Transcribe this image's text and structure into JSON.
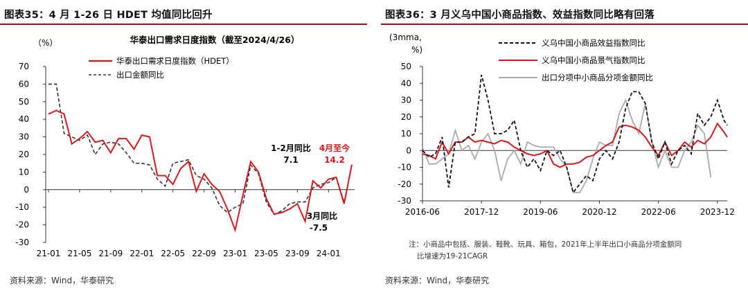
{
  "left": {
    "title": "图表35：4 月 1-26 日 HDET 均值同比回升",
    "source": "资料来源：Wind，华泰研究",
    "colors": {
      "hdet": "#d7191c",
      "export": "#333333",
      "rule": "#8b1a1a"
    }
  },
  "right": {
    "title": "图表36：3 月义乌中国小商品指数、效益指数同比略有回落",
    "note_line1": "注：小商品中包括、服装、鞋靴、玩具、箱包，2021年上半年出口小商品分项金额同",
    "note_line2": "比增速为19-21CAGR",
    "source": "资料来源：Wind，华泰研究",
    "colors": {
      "benefit": "#111111",
      "climate": "#d7191c",
      "export_small": "#aaaaaa"
    }
  },
  "chart_data": [
    {
      "type": "line",
      "title": "华泰出口需求日度指数（截至2024/4/26）",
      "ylabel": "（%）",
      "ylim": [
        -30,
        70
      ],
      "yticks": [
        "70",
        "60",
        "50",
        "40",
        "30",
        "20",
        "10",
        "0",
        "-10",
        "-20",
        "-30"
      ],
      "xtick_labels": [
        "21-01",
        "21-05",
        "21-09",
        "22-01",
        "22-05",
        "22-09",
        "23-01",
        "23-05",
        "23-09",
        "24-01"
      ],
      "x": [
        "21-01",
        "21-02",
        "21-03",
        "21-04",
        "21-05",
        "21-06",
        "21-07",
        "21-08",
        "21-09",
        "21-10",
        "21-11",
        "21-12",
        "22-01",
        "22-02",
        "22-03",
        "22-04",
        "22-05",
        "22-06",
        "22-07",
        "22-08",
        "22-09",
        "22-10",
        "22-11",
        "22-12",
        "23-01",
        "23-02",
        "23-03",
        "23-04",
        "23-05",
        "23-06",
        "23-07",
        "23-08",
        "23-09",
        "23-10",
        "23-11",
        "23-12",
        "24-01",
        "24-02",
        "24-03",
        "24-04"
      ],
      "series": [
        {
          "name": "华泰出口需求日度指数（HDET）",
          "values": [
            43,
            45,
            43,
            26,
            29,
            33,
            27,
            28,
            21,
            29,
            29,
            23,
            31,
            30,
            8,
            8,
            3,
            12,
            16,
            -1,
            9,
            3,
            -1,
            -11,
            -23,
            -3,
            16,
            10,
            -5,
            -14,
            -13,
            -11,
            -8,
            -18,
            5,
            1,
            6,
            7,
            -8,
            14.2
          ]
        },
        {
          "name": "出口金额同比",
          "values": [
            60,
            60,
            32,
            30,
            28,
            31,
            20,
            26,
            27,
            26,
            21,
            15,
            15,
            14,
            6,
            2,
            15,
            16,
            17,
            8,
            6,
            1,
            -9,
            -13,
            -10,
            -8,
            14,
            9,
            -7,
            -14,
            -12,
            -8,
            -7,
            -7,
            1,
            3,
            4,
            7,
            -7,
            null
          ]
        }
      ],
      "legend_position": "top-left",
      "annotations": [
        {
          "text": "1-2月同比",
          "value": "7.1"
        },
        {
          "text": "4月至今",
          "value": "14.2"
        },
        {
          "text": "3月同比",
          "value": "-7.5"
        }
      ]
    },
    {
      "type": "line",
      "ylabel_line1": "(3mma,",
      "ylabel_line2": "%)",
      "ylim": [
        -30,
        50
      ],
      "yticks": [
        "50",
        "40",
        "30",
        "20",
        "10",
        "0",
        "-10",
        "-20",
        "-30"
      ],
      "xtick_labels": [
        "2016-06",
        "2017-12",
        "2019-06",
        "2020-12",
        "2022-06",
        "2023-12"
      ],
      "xrange": [
        "2016-06",
        "2024-03"
      ],
      "x": [
        "2016-06",
        "2016-08",
        "2016-10",
        "2016-12",
        "2017-02",
        "2017-04",
        "2017-06",
        "2017-08",
        "2017-10",
        "2017-12",
        "2018-02",
        "2018-04",
        "2018-06",
        "2018-08",
        "2018-10",
        "2018-12",
        "2019-02",
        "2019-04",
        "2019-06",
        "2019-08",
        "2019-10",
        "2019-12",
        "2020-02",
        "2020-04",
        "2020-06",
        "2020-08",
        "2020-10",
        "2020-12",
        "2021-02",
        "2021-04",
        "2021-06",
        "2021-08",
        "2021-10",
        "2021-12",
        "2022-02",
        "2022-04",
        "2022-06",
        "2022-08",
        "2022-10",
        "2022-12",
        "2023-02",
        "2023-04",
        "2023-06",
        "2023-08",
        "2023-10",
        "2023-12",
        "2024-02",
        "2024-03"
      ],
      "series": [
        {
          "name": "义乌中国小商品效益指数同比",
          "values": [
            0,
            -4,
            -2,
            8,
            -22,
            5,
            5,
            8,
            10,
            45,
            30,
            10,
            10,
            12,
            18,
            0,
            -10,
            -5,
            -12,
            0,
            -3,
            0,
            -10,
            -25,
            -20,
            -15,
            -18,
            -5,
            0,
            -5,
            5,
            25,
            35,
            35,
            28,
            5,
            -5,
            5,
            -8,
            0,
            3,
            -2,
            22,
            15,
            20,
            30,
            18,
            15
          ]
        },
        {
          "name": "义乌中国小商品景气指数同比",
          "values": [
            -2,
            -3,
            -5,
            5,
            -2,
            5,
            5,
            8,
            5,
            6,
            5,
            4,
            6,
            5,
            2,
            0,
            -2,
            -3,
            -2,
            0,
            -8,
            -10,
            -8,
            -8,
            -7,
            -4,
            -3,
            0,
            3,
            5,
            14,
            15,
            14,
            12,
            8,
            2,
            -3,
            5,
            -3,
            0,
            5,
            2,
            6,
            4,
            8,
            16,
            11,
            8
          ]
        },
        {
          "name": "出口分项中小商品分项金额同比",
          "values": [
            2,
            -8,
            -8,
            -5,
            -2,
            12,
            0,
            3,
            -5,
            5,
            10,
            0,
            -18,
            -5,
            0,
            -8,
            5,
            3,
            2,
            2,
            2,
            -5,
            -10,
            -25,
            -25,
            -18,
            -5,
            5,
            3,
            3,
            22,
            30,
            18,
            10,
            28,
            5,
            -10,
            0,
            -10,
            -10,
            0,
            5,
            15,
            10,
            -16,
            null,
            null,
            null
          ]
        }
      ],
      "legend_position": "top"
    }
  ]
}
